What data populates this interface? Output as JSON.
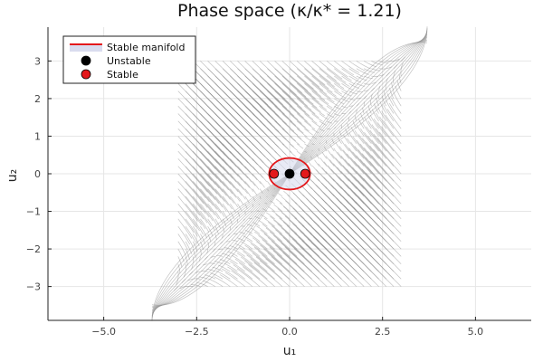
{
  "chart_data": {
    "type": "scatter",
    "title": "Phase space (κ/κ* = 1.21)",
    "xlabel": "u₁",
    "ylabel": "u₂",
    "xlim": [
      -6.5,
      6.5
    ],
    "ylim": [
      -3.9,
      3.9
    ],
    "xticks": [
      -5,
      -2.5,
      0,
      2.5,
      5
    ],
    "xtick_labels": [
      "−5.0",
      "−2.5",
      "0.0",
      "2.5",
      "5.0"
    ],
    "yticks": [
      -3,
      -2,
      -1,
      0,
      1,
      2,
      3
    ],
    "ytick_labels": [
      "−3",
      "−2",
      "−1",
      "0",
      "1",
      "2",
      "3"
    ],
    "grid": true,
    "legend_position": "top-left",
    "vector_field": {
      "grid_range": [
        -3,
        3
      ],
      "grid_step": 0.2,
      "color": "#8f8f8f",
      "note_visible": false
    },
    "series": [
      {
        "name": "Stable manifold",
        "kind": "curve",
        "color": "#e3181b",
        "shape": "ellipse",
        "center": [
          0,
          0
        ],
        "radius_x": 0.55,
        "radius_y": 0.42
      },
      {
        "name": "Unstable",
        "kind": "points",
        "color": "#000000",
        "points": [
          [
            0,
            0
          ]
        ]
      },
      {
        "name": "Stable",
        "kind": "points",
        "color": "#e3181b",
        "points": [
          [
            -0.42,
            0
          ],
          [
            0.42,
            0
          ]
        ]
      }
    ]
  }
}
